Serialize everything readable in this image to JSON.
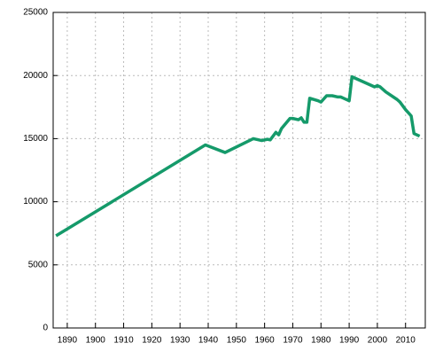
{
  "chart_data": {
    "type": "line",
    "x": [
      1886,
      1939,
      1946,
      1956,
      1959,
      1961,
      1962,
      1964,
      1965,
      1966,
      1969,
      1970,
      1972,
      1973,
      1974,
      1975,
      1976,
      1979,
      1980,
      1982,
      1984,
      1986,
      1987,
      1988,
      1990,
      1991,
      1999,
      2000,
      2001,
      2003,
      2007,
      2008,
      2010,
      2012,
      2013,
      2015
    ],
    "series": [
      {
        "color": "#159a6a",
        "values": [
          7300,
          14500,
          13900,
          15000,
          14850,
          14950,
          14900,
          15500,
          15300,
          15800,
          16600,
          16600,
          16500,
          16650,
          16300,
          16300,
          18200,
          18000,
          17900,
          18400,
          18400,
          18300,
          18300,
          18200,
          18000,
          19900,
          19100,
          19200,
          19100,
          18700,
          18100,
          17900,
          17300,
          16800,
          15400,
          15200
        ]
      }
    ],
    "xlim": [
      1885,
      2017
    ],
    "xticks": [
      1890,
      1900,
      1910,
      1920,
      1930,
      1940,
      1950,
      1960,
      1970,
      1980,
      1990,
      2000,
      2010
    ],
    "ylim": [
      0,
      25000
    ],
    "yticks": [
      0,
      5000,
      10000,
      15000,
      20000,
      25000
    ],
    "grid": true
  }
}
